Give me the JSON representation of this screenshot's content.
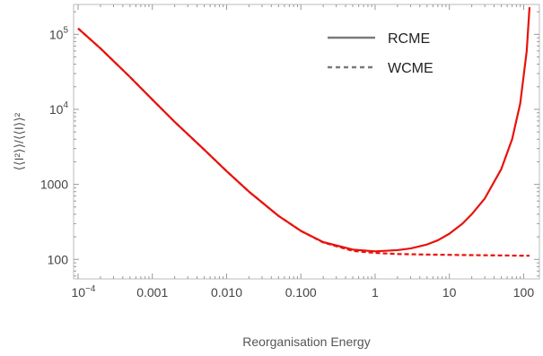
{
  "chart_data": {
    "type": "line",
    "title": "",
    "xlabel": "Reorganisation Energy",
    "ylabel": "⟨⟨I²⟩⟩/⟨⟨I⟩⟩²",
    "xscale": "log",
    "yscale": "log",
    "xlim": [
      0.0001,
      150
    ],
    "ylim": [
      55,
      250000
    ],
    "grid": false,
    "legend_position": "top-right",
    "xticks": [
      {
        "value": 0.0001,
        "base": "10",
        "exp": "−4"
      },
      {
        "value": 0.001,
        "label": "0.001"
      },
      {
        "value": 0.01,
        "label": "0.010"
      },
      {
        "value": 0.1,
        "label": "0.100"
      },
      {
        "value": 1,
        "label": "1"
      },
      {
        "value": 10,
        "label": "10"
      },
      {
        "value": 100,
        "label": "100"
      }
    ],
    "yticks": [
      {
        "value": 100,
        "label": "100"
      },
      {
        "value": 1000,
        "label": "1000"
      },
      {
        "value": 10000,
        "base": "10",
        "exp": "4"
      },
      {
        "value": 100000,
        "base": "10",
        "exp": "5"
      }
    ],
    "series": [
      {
        "name": "RCME",
        "style": "solid",
        "color": "#e8120c",
        "x": [
          0.0001,
          0.0002,
          0.0005,
          0.001,
          0.002,
          0.005,
          0.01,
          0.02,
          0.05,
          0.1,
          0.2,
          0.5,
          1,
          2,
          3,
          5,
          7,
          10,
          15,
          20,
          30,
          50,
          70,
          90,
          110,
          120
        ],
        "y": [
          120000,
          65000,
          27000,
          13500,
          6800,
          2900,
          1500,
          800,
          380,
          240,
          170,
          135,
          128,
          133,
          140,
          158,
          180,
          220,
          300,
          400,
          650,
          1600,
          4000,
          12000,
          60000,
          230000
        ]
      },
      {
        "name": "WCME",
        "style": "dashed",
        "color": "#e8120c",
        "x": [
          0.0001,
          0.0002,
          0.0005,
          0.001,
          0.002,
          0.005,
          0.01,
          0.02,
          0.05,
          0.1,
          0.2,
          0.5,
          1,
          2,
          5,
          10,
          20,
          50,
          100,
          120
        ],
        "y": [
          120000,
          65000,
          27000,
          13500,
          6800,
          2900,
          1500,
          800,
          380,
          240,
          168,
          130,
          122,
          118,
          116,
          115,
          114,
          113,
          112,
          112
        ]
      }
    ],
    "legend": [
      {
        "label": "RCME",
        "style": "solid",
        "color": "#7a7a7a"
      },
      {
        "label": "WCME",
        "style": "dashed",
        "color": "#7a7a7a"
      }
    ]
  }
}
